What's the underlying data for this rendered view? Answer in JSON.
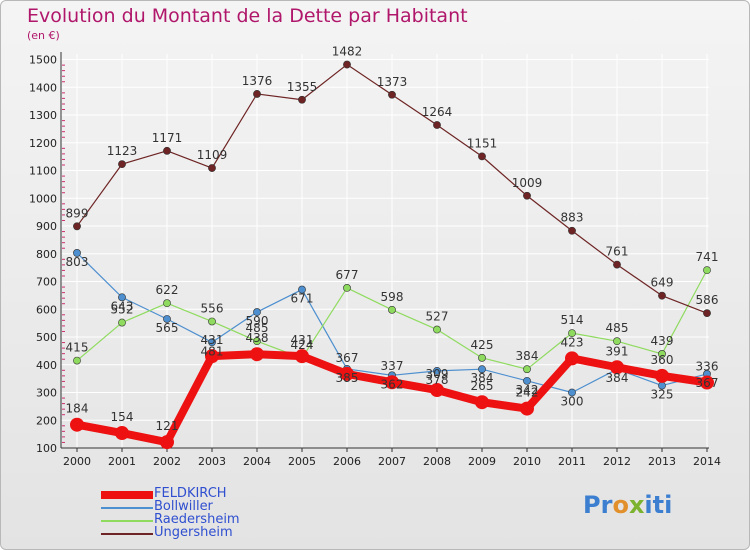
{
  "colors": {
    "title": "#b0176b",
    "grid": "#ffffff",
    "tick_mark": "#cc2f6f",
    "legend_text": "#2f4fd0"
  },
  "logo": {
    "letters": [
      "P",
      "r",
      "o",
      "x",
      "i",
      "t",
      "i"
    ],
    "colors": [
      "#3c7ed0",
      "#3c7ed0",
      "#e2902c",
      "#7cb32e",
      "#3c7ed0",
      "#3c7ed0",
      "#3c7ed0"
    ]
  },
  "chart_data": {
    "type": "line",
    "title": "Evolution du Montant de la Dette par Habitant",
    "subtitle": "(en €)",
    "x": [
      "2000",
      "2001",
      "2002",
      "2003",
      "2004",
      "2005",
      "2006",
      "2007",
      "2008",
      "2009",
      "2010",
      "2011",
      "2012",
      "2013",
      "2014"
    ],
    "y_ticks": [
      "100",
      "200",
      "300",
      "400",
      "500",
      "600",
      "700",
      "800",
      "900",
      "1000",
      "1100",
      "1200",
      "1300",
      "1400",
      "1500"
    ],
    "ylim": [
      100,
      1520
    ],
    "grid": true,
    "legend_position": "bottom-left",
    "series": [
      {
        "name": "FELDKIRCH",
        "color": "#ee1111",
        "emphasis": true,
        "values": [
          184,
          154,
          121,
          431,
          438,
          431,
          367,
          337,
          309,
          265,
          242,
          423,
          391,
          360,
          336
        ],
        "labels": [
          "184",
          "154",
          "121",
          "431",
          "438",
          "431",
          "367",
          "337",
          "309",
          "265",
          "242",
          "423",
          "391",
          "360",
          "336"
        ]
      },
      {
        "name": "Bollwiller",
        "color": "#4d8fcf",
        "emphasis": false,
        "values": [
          803,
          643,
          565,
          481,
          590,
          671,
          385,
          362,
          378,
          384,
          342,
          300,
          384,
          325,
          367
        ],
        "labels": [
          "803",
          "643",
          "565",
          "481",
          "590",
          "671",
          "385",
          "362",
          "378",
          "384",
          "342",
          "300",
          "384",
          "325",
          "367"
        ]
      },
      {
        "name": "Raedersheim",
        "color": "#8fdb5f",
        "emphasis": false,
        "values": [
          415,
          552,
          622,
          556,
          485,
          424,
          677,
          598,
          527,
          425,
          384,
          514,
          485,
          439,
          741
        ],
        "labels": [
          "415",
          "552",
          "622",
          "556",
          "485",
          "424",
          "677",
          "598",
          "527",
          "425",
          "384",
          "514",
          "485",
          "439",
          "741"
        ]
      },
      {
        "name": "Ungersheim",
        "color": "#6e2424",
        "emphasis": false,
        "values": [
          899,
          1123,
          1171,
          1109,
          1376,
          1355,
          1482,
          1373,
          1264,
          1151,
          1009,
          883,
          761,
          649,
          586
        ],
        "labels": [
          "899",
          "1123",
          "1171",
          "1109",
          "1376",
          "1355",
          "1482",
          "1373",
          "1264",
          "1151",
          "1009",
          "883",
          "761",
          "649",
          "586"
        ]
      }
    ]
  }
}
